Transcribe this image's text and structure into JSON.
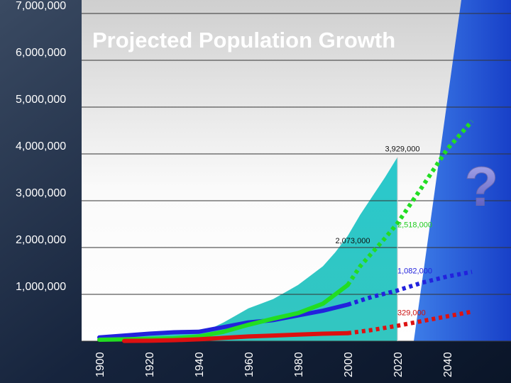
{
  "chart_data": {
    "type": "line",
    "title": "Projected Population Growth",
    "xlabel": "",
    "ylabel": "",
    "xlim": [
      1900,
      2055
    ],
    "ylim": [
      0,
      7000000
    ],
    "y_ticks": [
      {
        "value": 1000000,
        "label": "1,000,000"
      },
      {
        "value": 2000000,
        "label": "2,000,000"
      },
      {
        "value": 3000000,
        "label": "3,000,000"
      },
      {
        "value": 4000000,
        "label": "4,000,000"
      },
      {
        "value": 5000000,
        "label": "5,000,000"
      },
      {
        "value": 6000000,
        "label": "6,000,000"
      },
      {
        "value": 7000000,
        "label": "7,000,000"
      }
    ],
    "x_ticks": [
      "1900",
      "1920",
      "1940",
      "1960",
      "1980",
      "2000",
      "2020",
      "2040"
    ],
    "grid": true,
    "area": {
      "color": "#2ec4c4",
      "x": [
        1900,
        1910,
        1920,
        1930,
        1940,
        1945,
        1950,
        1955,
        1960,
        1965,
        1970,
        1975,
        1980,
        1985,
        1990,
        1995,
        2000,
        2005,
        2010,
        2015,
        2020
      ],
      "y": [
        60000,
        90000,
        130000,
        180000,
        200000,
        270000,
        400000,
        550000,
        700000,
        800000,
        900000,
        1050000,
        1200000,
        1400000,
        1600000,
        1900000,
        2250000,
        2700000,
        3100000,
        3500000,
        3929000
      ]
    },
    "series": [
      {
        "color": "#2222dd",
        "x": [
          1900,
          1910,
          1920,
          1930,
          1940,
          1950,
          1960,
          1970,
          1980,
          1990,
          2000
        ],
        "y": [
          80000,
          120000,
          160000,
          190000,
          200000,
          300000,
          400000,
          450000,
          550000,
          650000,
          780000
        ],
        "projection": {
          "x": [
            2000,
            2010,
            2020,
            2030,
            2040,
            2050
          ],
          "y": [
            780000,
            950000,
            1082000,
            1250000,
            1380000,
            1480000
          ]
        }
      },
      {
        "color": "#22dd22",
        "x": [
          1900,
          1910,
          1920,
          1930,
          1940,
          1950,
          1960,
          1970,
          1980,
          1990,
          1995,
          2000
        ],
        "y": [
          30000,
          40000,
          50000,
          60000,
          100000,
          200000,
          350000,
          480000,
          600000,
          800000,
          1000000,
          1200000
        ],
        "projection": {
          "x": [
            2000,
            2005,
            2010,
            2015,
            2020,
            2030,
            2040,
            2050
          ],
          "y": [
            1200000,
            1600000,
            1900000,
            2200000,
            2518000,
            3300000,
            4100000,
            4700000
          ]
        }
      },
      {
        "color": "#dd1111",
        "x": [
          1910,
          1920,
          1930,
          1940,
          1950,
          1960,
          1970,
          1980,
          1990,
          2000
        ],
        "y": [
          5000,
          10000,
          20000,
          40000,
          70000,
          100000,
          120000,
          140000,
          160000,
          170000
        ],
        "projection": {
          "x": [
            2000,
            2010,
            2020,
            2030,
            2040,
            2050
          ],
          "y": [
            170000,
            240000,
            329000,
            430000,
            530000,
            630000
          ]
        }
      }
    ],
    "vline": {
      "x": 2020,
      "color": "#cccccc"
    },
    "annotations": [
      {
        "text": "3,929,000",
        "x": 2015,
        "y": 4050000,
        "color": "#111111"
      },
      {
        "text": "2,518,000",
        "x": 2020,
        "y": 2430000,
        "color": "#22cc22"
      },
      {
        "text": "2,073,000",
        "x": 1995,
        "y": 2090000,
        "color": "#111111"
      },
      {
        "text": "1,082,000",
        "x": 2020,
        "y": 1450000,
        "color": "#2222dd"
      },
      {
        "text": "329,000",
        "x": 2020,
        "y": 550000,
        "color": "#cc1111"
      }
    ],
    "marker": {
      "text": "?",
      "x": 2047,
      "y": 2900000
    }
  }
}
